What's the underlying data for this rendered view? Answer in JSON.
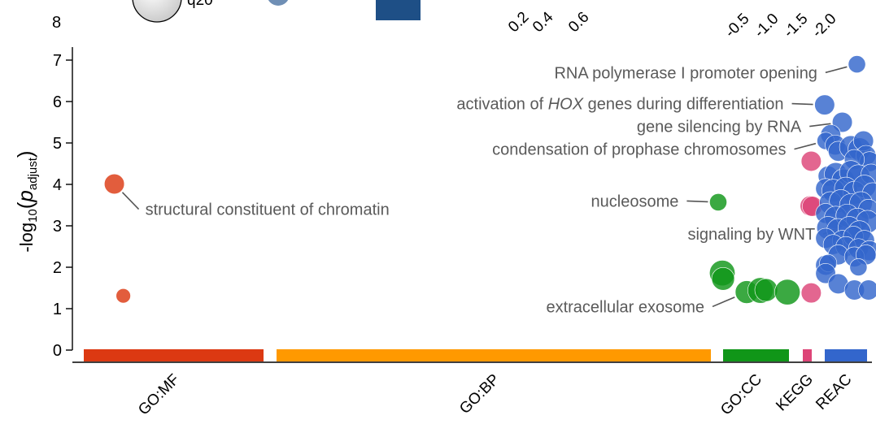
{
  "chart_data": {
    "type": "scatter",
    "ylabel": {
      "prefix": "-log",
      "base_sub": "10",
      "open": "(",
      "var": "p",
      "var_sub": "adjust",
      "close": ")"
    },
    "ylim": [
      0,
      7.4
    ],
    "yticks": [
      "0",
      "1",
      "2",
      "3",
      "4",
      "5",
      "6",
      "7"
    ],
    "sources": [
      {
        "name": "GO:MF",
        "color": "#dc3912"
      },
      {
        "name": "GO:BP",
        "color": "#ff9900"
      },
      {
        "name": "GO:CC",
        "color": "#109618"
      },
      {
        "name": "KEGG",
        "color": "#dd4477"
      },
      {
        "name": "REAC",
        "color": "#3366cc"
      }
    ],
    "series": [
      {
        "name": "GO:MF",
        "points": [
          {
            "x": 0.17,
            "y": 4.01,
            "size": 4
          },
          {
            "x": 0.22,
            "y": 1.31,
            "size": 2
          }
        ]
      },
      {
        "name": "GO:BP",
        "points": []
      },
      {
        "name": "GO:CC",
        "points": [
          {
            "x": 0.03,
            "y": 3.57,
            "size": 3
          },
          {
            "x": 0.08,
            "y": 1.86,
            "size": 6
          },
          {
            "x": 0.09,
            "y": 1.72,
            "size": 5
          },
          {
            "x": 0.38,
            "y": 1.4,
            "size": 5
          },
          {
            "x": 0.55,
            "y": 1.44,
            "size": 6
          },
          {
            "x": 0.62,
            "y": 1.45,
            "size": 5
          },
          {
            "x": 0.88,
            "y": 1.4,
            "size": 6
          }
        ]
      },
      {
        "name": "KEGG",
        "points": [
          {
            "x": 0.65,
            "y": 4.56,
            "size": 4
          },
          {
            "x": 0.58,
            "y": 3.48,
            "size": 4
          },
          {
            "x": 0.72,
            "y": 3.47,
            "size": 4
          },
          {
            "x": 0.65,
            "y": 1.38,
            "size": 4
          }
        ]
      },
      {
        "name": "REAC",
        "points": [
          {
            "x": 0.67,
            "y": 6.9,
            "size": 3
          },
          {
            "x": 0.03,
            "y": 5.92,
            "size": 4
          },
          {
            "x": 0.38,
            "y": 5.5,
            "size": 4
          },
          {
            "x": 0.15,
            "y": 5.2,
            "size": 4
          },
          {
            "x": 0.05,
            "y": 5.05,
            "size": 3
          },
          {
            "x": 0.24,
            "y": 4.95,
            "size": 4
          },
          {
            "x": 0.3,
            "y": 4.8,
            "size": 4
          },
          {
            "x": 0.55,
            "y": 4.9,
            "size": 5
          },
          {
            "x": 0.72,
            "y": 4.85,
            "size": 5
          },
          {
            "x": 0.8,
            "y": 5.05,
            "size": 4
          },
          {
            "x": 0.85,
            "y": 4.7,
            "size": 4
          },
          {
            "x": 0.92,
            "y": 4.55,
            "size": 4
          },
          {
            "x": 0.62,
            "y": 4.6,
            "size": 4
          },
          {
            "x": 0.1,
            "y": 4.2,
            "size": 4
          },
          {
            "x": 0.25,
            "y": 4.25,
            "size": 5
          },
          {
            "x": 0.4,
            "y": 4.1,
            "size": 5
          },
          {
            "x": 0.55,
            "y": 4.3,
            "size": 5
          },
          {
            "x": 0.7,
            "y": 4.2,
            "size": 5
          },
          {
            "x": 0.95,
            "y": 4.25,
            "size": 4
          },
          {
            "x": 0.05,
            "y": 3.9,
            "size": 4
          },
          {
            "x": 0.2,
            "y": 3.85,
            "size": 5
          },
          {
            "x": 0.45,
            "y": 3.9,
            "size": 5
          },
          {
            "x": 0.62,
            "y": 3.8,
            "size": 5
          },
          {
            "x": 0.82,
            "y": 3.95,
            "size": 5
          },
          {
            "x": 0.98,
            "y": 3.8,
            "size": 4
          },
          {
            "x": 0.15,
            "y": 3.55,
            "size": 5
          },
          {
            "x": 0.35,
            "y": 3.6,
            "size": 5
          },
          {
            "x": 0.55,
            "y": 3.5,
            "size": 5
          },
          {
            "x": 0.75,
            "y": 3.55,
            "size": 5
          },
          {
            "x": 0.9,
            "y": 3.4,
            "size": 4
          },
          {
            "x": 0.05,
            "y": 3.3,
            "size": 4
          },
          {
            "x": 0.25,
            "y": 3.2,
            "size": 5
          },
          {
            "x": 0.48,
            "y": 3.25,
            "size": 5
          },
          {
            "x": 0.68,
            "y": 3.15,
            "size": 5
          },
          {
            "x": 0.88,
            "y": 3.1,
            "size": 5
          },
          {
            "x": 0.1,
            "y": 2.95,
            "size": 5
          },
          {
            "x": 0.3,
            "y": 2.9,
            "size": 5
          },
          {
            "x": 0.52,
            "y": 2.95,
            "size": 5
          },
          {
            "x": 0.72,
            "y": 2.85,
            "size": 5
          },
          {
            "x": 0.05,
            "y": 2.7,
            "size": 4
          },
          {
            "x": 0.38,
            "y": 2.65,
            "size": 4
          },
          {
            "x": 0.6,
            "y": 2.75,
            "size": 4
          },
          {
            "x": 0.82,
            "y": 2.65,
            "size": 4
          },
          {
            "x": 0.2,
            "y": 2.55,
            "size": 4
          },
          {
            "x": 0.45,
            "y": 2.5,
            "size": 4
          },
          {
            "x": 0.7,
            "y": 2.45,
            "size": 4
          },
          {
            "x": 0.92,
            "y": 2.4,
            "size": 4
          },
          {
            "x": 0.3,
            "y": 2.3,
            "size": 4
          },
          {
            "x": 0.62,
            "y": 2.25,
            "size": 4
          },
          {
            "x": 0.85,
            "y": 2.3,
            "size": 4
          },
          {
            "x": 0.05,
            "y": 2.05,
            "size": 4
          },
          {
            "x": 0.1,
            "y": 2.1,
            "size": 3
          },
          {
            "x": 0.7,
            "y": 2.0,
            "size": 3
          },
          {
            "x": 0.05,
            "y": 1.85,
            "size": 4
          },
          {
            "x": 0.3,
            "y": 1.6,
            "size": 4
          },
          {
            "x": 0.62,
            "y": 1.45,
            "size": 4
          },
          {
            "x": 0.9,
            "y": 1.45,
            "size": 4
          }
        ]
      }
    ],
    "annotations": [
      {
        "source": "GO:MF",
        "point": 0,
        "segments": [
          {
            "t": "structural constituent of chromatin"
          }
        ],
        "align": "start",
        "ly": 3.4
      },
      {
        "source": "GO:CC",
        "point": 0,
        "segments": [
          {
            "t": "nucleosome"
          }
        ],
        "align": "end",
        "ly": 3.6
      },
      {
        "source": "GO:CC",
        "point": 3,
        "segments": [
          {
            "t": "extracellular exosome"
          }
        ],
        "align": "end",
        "ly": 1.05
      },
      {
        "source": "REAC",
        "point": 0,
        "segments": [
          {
            "t": "RNA polymerase I promoter opening"
          }
        ],
        "align": "end",
        "ly": 6.7
      },
      {
        "source": "REAC",
        "point": 1,
        "segments": [
          {
            "t": "activation of "
          },
          {
            "t": "HOX",
            "italic": true
          },
          {
            "t": " genes during differentiation"
          }
        ],
        "align": "end",
        "ly": 5.95
      },
      {
        "source": "REAC",
        "point": 2,
        "segments": [
          {
            "t": "gene silencing by RNA"
          }
        ],
        "align": "end",
        "ly": 5.4
      },
      {
        "source": "REAC",
        "point": 4,
        "segments": [
          {
            "t": "condensation of prophase chromosomes"
          }
        ],
        "align": "end",
        "ly": 4.85
      },
      {
        "source": "REAC",
        "point": 33,
        "segments": [
          {
            "t": "signaling by WNT"
          }
        ],
        "align": "end",
        "ly": 2.8
      }
    ],
    "legend_partial": {
      "top_tick_label": "8",
      "size_label_fragment": "q20",
      "ticks_a": [
        "0.2",
        "0.4",
        "0.6"
      ],
      "ticks_b": [
        "-0.5",
        "-1.0",
        "-1.5",
        "-2.0"
      ]
    }
  }
}
